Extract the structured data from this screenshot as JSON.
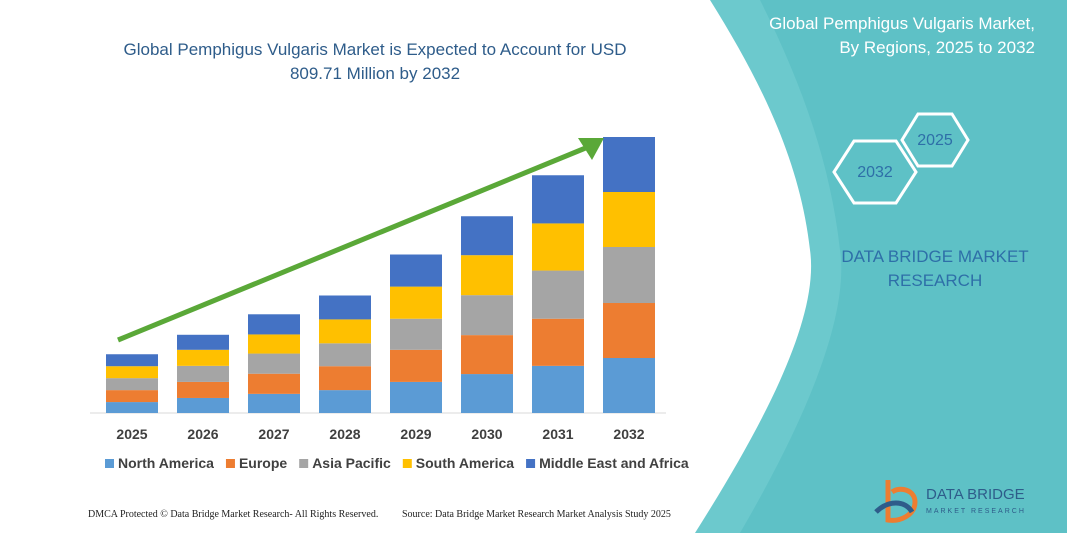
{
  "chart_data": {
    "type": "bar",
    "stacked": true,
    "title": "Global Pemphigus Vulgaris Market is Expected to Account for USD 809.71 Million by 2032",
    "categories": [
      "2025",
      "2026",
      "2027",
      "2028",
      "2029",
      "2030",
      "2031",
      "2032"
    ],
    "series": [
      {
        "name": "North America",
        "color": "#5b9bd5",
        "values": [
          32,
          44,
          56,
          67,
          91,
          114,
          138,
          161
        ]
      },
      {
        "name": "Europe",
        "color": "#ed7d31",
        "values": [
          35,
          47,
          59,
          70,
          94,
          114,
          138,
          161
        ]
      },
      {
        "name": "Asia Pacific",
        "color": "#a5a5a5",
        "values": [
          35,
          47,
          59,
          67,
          91,
          117,
          141,
          164
        ]
      },
      {
        "name": "South America",
        "color": "#ffc000",
        "values": [
          35,
          47,
          56,
          70,
          94,
          117,
          138,
          161
        ]
      },
      {
        "name": "Middle East and Africa",
        "color": "#4472c4",
        "values": [
          35,
          44,
          59,
          70,
          94,
          114,
          141,
          161
        ]
      }
    ]
  },
  "panel": {
    "title": "Global Pemphigus Vulgaris Market, By Regions, 2025 to 2032",
    "hexagons": [
      "2025",
      "2032"
    ],
    "brand": "DATA BRIDGE MARKET RESEARCH"
  },
  "logo": {
    "name": "DATA BRIDGE",
    "tagline": "MARKET RESEARCH"
  },
  "footer": {
    "left": "DMCA Protected © Data Bridge Market Research- All Rights Reserved.",
    "right": "Source: Data Bridge Market Research Market Analysis Study 2025"
  }
}
